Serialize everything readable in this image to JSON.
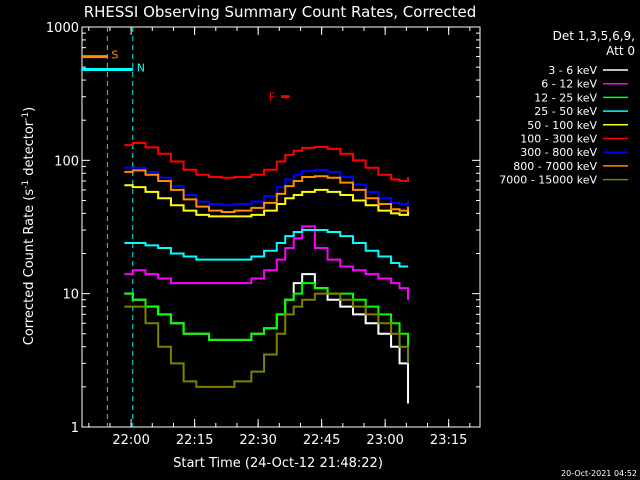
{
  "chart_data": {
    "type": "line",
    "title": "RHESSI Observing Summary Count Rates, Corrected",
    "xlabel": "Start Time (24-Oct-12 21:48:22)",
    "ylabel_main": "Corrected Count Rate (s",
    "ylabel_sup1": "-1",
    "ylabel_mid": " detector",
    "ylabel_sup2": "-1",
    "ylabel_end": ")",
    "y_scale": "log",
    "ylim": [
      1,
      1000
    ],
    "y_ticks": [
      {
        "value": 1,
        "label": "1"
      },
      {
        "value": 10,
        "label": "10"
      },
      {
        "value": 100,
        "label": "100"
      },
      {
        "value": 1000,
        "label": "1000"
      }
    ],
    "x_start_minutes": 0,
    "xlim_minutes": [
      0,
      94
    ],
    "x_ticks": [
      {
        "minutes": 11.6,
        "label": "22:00"
      },
      {
        "minutes": 26.6,
        "label": "22:15"
      },
      {
        "minutes": 41.6,
        "label": "22:30"
      },
      {
        "minutes": 56.6,
        "label": "22:45"
      },
      {
        "minutes": 71.6,
        "label": "23:00"
      },
      {
        "minutes": 86.6,
        "label": "23:15"
      }
    ],
    "legend_header1": "Det 1,3,5,6,9,",
    "legend_header2": "Att 0",
    "legend_position": "right",
    "series": [
      {
        "name": "3 - 6 keV",
        "color": "#ffffff",
        "x": [
          10,
          12,
          15,
          18,
          21,
          24,
          27,
          30,
          33,
          36,
          40,
          43,
          46,
          48,
          50,
          52,
          55,
          58,
          61,
          64,
          67,
          70,
          73,
          75,
          77
        ],
        "y": [
          10,
          9,
          8,
          7,
          6,
          5,
          5,
          4.5,
          4.5,
          4.5,
          5,
          5.5,
          7,
          9,
          12,
          14,
          11,
          9,
          8,
          7,
          6,
          5,
          4,
          3,
          1.5
        ]
      },
      {
        "name": "6 - 12 keV",
        "color": "#ff00ff",
        "x": [
          10,
          12,
          15,
          18,
          21,
          24,
          27,
          30,
          33,
          36,
          40,
          43,
          46,
          48,
          50,
          52,
          55,
          58,
          61,
          64,
          67,
          70,
          73,
          75,
          77
        ],
        "y": [
          14,
          15,
          14,
          13,
          12,
          12,
          12,
          12,
          12,
          12,
          13,
          15,
          18,
          22,
          26,
          32,
          22,
          18,
          16,
          15,
          14,
          13,
          12,
          11,
          9
        ]
      },
      {
        "name": "12 - 25 keV",
        "color": "#00ff00",
        "x": [
          10,
          12,
          15,
          18,
          21,
          24,
          27,
          30,
          33,
          36,
          40,
          43,
          46,
          48,
          50,
          52,
          55,
          58,
          61,
          64,
          67,
          70,
          73,
          75,
          77
        ],
        "y": [
          10,
          9,
          8,
          7,
          6,
          5,
          5,
          4.5,
          4.5,
          4.5,
          5,
          5.5,
          7,
          9,
          10,
          12,
          11,
          10,
          10,
          9,
          8,
          7,
          6,
          5,
          4
        ]
      },
      {
        "name": "25 - 50 keV",
        "color": "#00ffff",
        "x": [
          10,
          12,
          15,
          18,
          21,
          24,
          27,
          30,
          33,
          36,
          40,
          43,
          46,
          48,
          50,
          52,
          55,
          58,
          61,
          64,
          67,
          70,
          73,
          75,
          77
        ],
        "y": [
          24,
          24,
          23,
          22,
          20,
          19,
          18,
          18,
          18,
          18,
          19,
          21,
          24,
          27,
          29,
          30,
          30,
          29,
          27,
          24,
          21,
          19,
          17,
          16,
          16
        ]
      },
      {
        "name": "50 - 100 keV",
        "color": "#ffff00",
        "x": [
          10,
          12,
          15,
          18,
          21,
          24,
          27,
          30,
          33,
          36,
          40,
          43,
          46,
          48,
          50,
          52,
          55,
          58,
          61,
          64,
          67,
          70,
          73,
          75,
          77
        ],
        "y": [
          65,
          63,
          58,
          52,
          46,
          42,
          39,
          38,
          38,
          38,
          39,
          42,
          47,
          52,
          55,
          58,
          60,
          58,
          55,
          50,
          46,
          42,
          40,
          39,
          42
        ]
      },
      {
        "name": "100 - 300 keV",
        "color": "#ff0000",
        "x": [
          10,
          12,
          15,
          18,
          21,
          24,
          27,
          30,
          33,
          36,
          40,
          43,
          46,
          48,
          50,
          52,
          55,
          58,
          61,
          64,
          67,
          70,
          73,
          75,
          77
        ],
        "y": [
          130,
          135,
          125,
          112,
          98,
          85,
          78,
          75,
          74,
          75,
          78,
          85,
          98,
          110,
          118,
          124,
          126,
          122,
          112,
          100,
          88,
          78,
          72,
          70,
          75
        ]
      },
      {
        "name": "300 - 800 keV",
        "color": "#0000ff",
        "x": [
          10,
          12,
          15,
          18,
          21,
          24,
          27,
          30,
          33,
          36,
          40,
          43,
          46,
          48,
          50,
          52,
          55,
          58,
          61,
          64,
          67,
          70,
          73,
          75,
          77
        ],
        "y": [
          88,
          88,
          82,
          74,
          64,
          55,
          49,
          47,
          46,
          47,
          49,
          54,
          63,
          72,
          78,
          83,
          85,
          82,
          75,
          66,
          58,
          52,
          48,
          47,
          50
        ]
      },
      {
        "name": "800 - 7000 keV",
        "color": "#ff8c00",
        "x": [
          10,
          12,
          15,
          18,
          21,
          24,
          27,
          30,
          33,
          36,
          40,
          43,
          46,
          48,
          50,
          52,
          55,
          58,
          61,
          64,
          67,
          70,
          73,
          75,
          77
        ],
        "y": [
          82,
          84,
          78,
          70,
          60,
          51,
          45,
          42,
          41,
          42,
          44,
          48,
          56,
          64,
          70,
          75,
          76,
          74,
          68,
          60,
          52,
          47,
          43,
          42,
          45
        ]
      },
      {
        "name": "7000 - 15000 keV",
        "color": "#808000",
        "x": [
          10,
          12,
          15,
          18,
          21,
          24,
          27,
          30,
          33,
          36,
          40,
          43,
          46,
          48,
          50,
          52,
          55,
          58,
          61,
          64,
          67,
          70,
          73,
          75,
          77
        ],
        "y": [
          8,
          8,
          6,
          4,
          3,
          2.2,
          2,
          2,
          2,
          2.2,
          2.6,
          3.5,
          5,
          7,
          8,
          9,
          10,
          10,
          9,
          8,
          7,
          6,
          5,
          4,
          3
        ]
      }
    ],
    "flag_markers": [
      {
        "label": "S",
        "color": "#ff8c00",
        "x_start": 0,
        "x_end": 6,
        "x_line": 6,
        "y": 600
      },
      {
        "label": "N",
        "color": "#00ffff",
        "x_start": 0,
        "x_end": 12,
        "x_line": 12,
        "y": 480
      },
      {
        "label": "F",
        "color": "#ff0000",
        "x_start": 47,
        "x_end": 49,
        "y": 300
      }
    ],
    "footer_date": "20-Oct-2021 04:52"
  }
}
